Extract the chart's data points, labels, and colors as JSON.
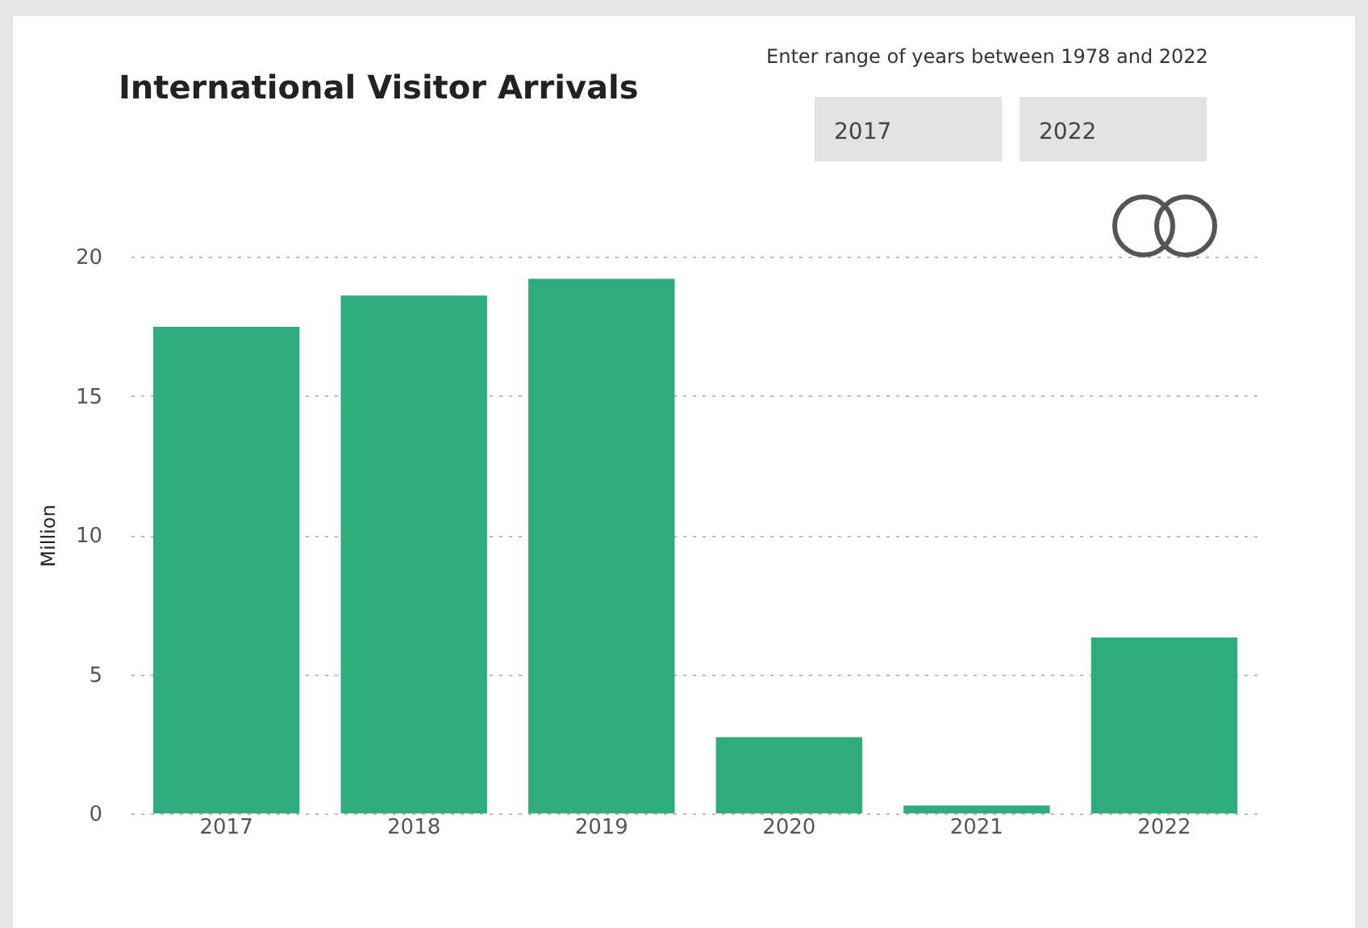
{
  "chart_data": {
    "type": "bar",
    "title": "International Visitor Arrivals",
    "ylabel": "Million",
    "categories": [
      "2017",
      "2018",
      "2019",
      "2020",
      "2021",
      "2022"
    ],
    "values": [
      17.48,
      18.6,
      19.2,
      2.74,
      0.28,
      6.32
    ],
    "color": "#2fac7e",
    "ylim": [
      0,
      20
    ],
    "yticks": [
      0,
      5,
      10,
      15,
      20
    ],
    "grid": "y",
    "annotations": [
      "Enter range of years between 1978 and 2022",
      "2017",
      "2022"
    ]
  }
}
